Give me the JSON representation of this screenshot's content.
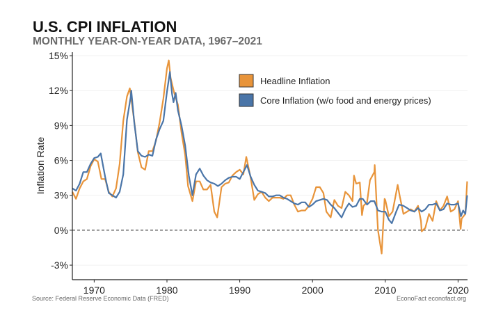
{
  "title": "U.S. CPI INFLATION",
  "subtitle": "MONTHLY YEAR-ON-YEAR DATA, 1967–2021",
  "source": "Source: Federal Reserve Economic Data (FRED)",
  "brand": "EconoFact  econofact.org",
  "chart_data": {
    "type": "line",
    "ylabel": "Inflation Rate",
    "xlabel": "",
    "xlim": [
      1967,
      2021.3
    ],
    "ylim": [
      -4.25,
      15.3
    ],
    "yticks": [
      -3,
      0,
      3,
      6,
      9,
      12,
      15
    ],
    "ytick_labels": [
      "-3%",
      "0%",
      "3%",
      "6%",
      "9%",
      "12%",
      "15%"
    ],
    "xticks": [
      1970,
      1980,
      1990,
      2000,
      2010,
      2020
    ],
    "xtick_labels": [
      "1970",
      "1980",
      "1990",
      "2000",
      "2010",
      "2020"
    ],
    "grid": "horizontal, faint",
    "zero_line": "dashed",
    "legend_position": "top-right",
    "series": [
      {
        "name": "Headline Inflation",
        "color": "#E8943A",
        "x": [
          1967.0,
          1967.5,
          1968.0,
          1968.5,
          1969.0,
          1969.5,
          1970.0,
          1970.5,
          1971.0,
          1971.5,
          1972.0,
          1972.5,
          1973.0,
          1973.5,
          1974.0,
          1974.5,
          1974.9,
          1975.5,
          1976.0,
          1976.5,
          1977.0,
          1977.5,
          1978.0,
          1978.5,
          1979.0,
          1979.5,
          1980.0,
          1980.25,
          1980.5,
          1981.0,
          1981.5,
          1982.0,
          1982.5,
          1982.9,
          1983.5,
          1984.0,
          1984.5,
          1985.0,
          1985.5,
          1986.0,
          1986.5,
          1986.9,
          1987.5,
          1988.0,
          1988.5,
          1989.0,
          1989.5,
          1990.0,
          1990.5,
          1990.9,
          1991.5,
          1992.0,
          1992.5,
          1993.0,
          1993.5,
          1994.0,
          1994.5,
          1995.0,
          1995.5,
          1996.0,
          1996.5,
          1997.0,
          1997.5,
          1998.0,
          1998.5,
          1999.0,
          1999.5,
          2000.0,
          2000.5,
          2001.0,
          2001.5,
          2001.9,
          2002.5,
          2003.0,
          2003.5,
          2004.0,
          2004.5,
          2005.0,
          2005.5,
          2005.7,
          2006.0,
          2006.5,
          2006.8,
          2007.0,
          2007.5,
          2007.9,
          2008.5,
          2008.55,
          2008.9,
          2009.0,
          2009.5,
          2009.9,
          2010.0,
          2010.5,
          2011.0,
          2011.7,
          2012.0,
          2012.5,
          2013.0,
          2013.5,
          2014.0,
          2014.5,
          2014.9,
          2015.0,
          2015.5,
          2016.0,
          2016.5,
          2017.0,
          2017.5,
          2018.0,
          2018.5,
          2019.0,
          2019.5,
          2020.0,
          2020.35,
          2020.5,
          2021.0,
          2021.25
        ],
        "y": [
          3.3,
          2.7,
          3.6,
          4.2,
          4.4,
          5.5,
          6.1,
          5.9,
          4.4,
          4.4,
          3.3,
          2.9,
          3.6,
          5.7,
          9.4,
          11.5,
          12.2,
          9.4,
          6.7,
          5.4,
          5.2,
          6.8,
          6.8,
          7.7,
          9.3,
          11.3,
          13.9,
          14.6,
          13.1,
          11.8,
          10.8,
          8.4,
          6.5,
          3.8,
          2.5,
          4.2,
          4.2,
          3.5,
          3.5,
          3.9,
          1.6,
          1.1,
          3.7,
          4.0,
          4.1,
          4.7,
          5.0,
          5.2,
          4.8,
          6.3,
          4.5,
          2.6,
          3.1,
          3.3,
          2.8,
          2.5,
          2.8,
          2.8,
          2.8,
          2.7,
          3.0,
          3.0,
          2.2,
          1.6,
          1.7,
          1.7,
          2.1,
          2.7,
          3.7,
          3.7,
          3.2,
          1.6,
          1.1,
          2.6,
          2.1,
          1.9,
          3.3,
          3.0,
          2.5,
          4.7,
          4.0,
          4.1,
          1.3,
          2.1,
          2.4,
          4.3,
          5.0,
          5.6,
          1.1,
          0.0,
          -2.0,
          2.7,
          2.6,
          1.2,
          1.6,
          3.9,
          2.9,
          1.4,
          1.6,
          1.8,
          1.6,
          2.1,
          0.8,
          -0.1,
          0.2,
          1.4,
          0.8,
          2.5,
          1.7,
          2.1,
          2.9,
          1.6,
          1.8,
          2.5,
          0.1,
          1.0,
          1.4,
          4.2
        ]
      },
      {
        "name": "Core Inflation (w/o food and energy prices)",
        "color": "#4A75A8",
        "x": [
          1967.0,
          1967.5,
          1968.0,
          1968.5,
          1969.0,
          1969.5,
          1970.0,
          1970.5,
          1970.9,
          1971.5,
          1972.0,
          1972.5,
          1973.0,
          1973.5,
          1974.0,
          1974.5,
          1975.0,
          1975.1,
          1975.5,
          1976.0,
          1976.5,
          1977.0,
          1977.5,
          1978.0,
          1978.5,
          1979.0,
          1979.5,
          1980.0,
          1980.4,
          1980.7,
          1980.9,
          1981.2,
          1981.5,
          1982.0,
          1982.5,
          1983.0,
          1983.5,
          1984.0,
          1984.5,
          1985.0,
          1985.5,
          1986.0,
          1986.5,
          1987.0,
          1987.5,
          1988.0,
          1988.5,
          1989.0,
          1989.5,
          1990.0,
          1990.5,
          1991.0,
          1991.5,
          1992.0,
          1992.5,
          1993.0,
          1993.5,
          1994.0,
          1994.5,
          1995.0,
          1995.5,
          1996.0,
          1996.5,
          1997.0,
          1997.5,
          1998.0,
          1998.5,
          1999.0,
          1999.5,
          2000.0,
          2000.5,
          2001.0,
          2001.5,
          2002.0,
          2002.5,
          2003.0,
          2003.5,
          2004.0,
          2004.5,
          2005.0,
          2005.5,
          2006.0,
          2006.5,
          2006.9,
          2007.5,
          2008.0,
          2008.5,
          2009.0,
          2009.5,
          2010.0,
          2010.5,
          2010.9,
          2011.5,
          2011.9,
          2012.5,
          2013.0,
          2013.5,
          2014.0,
          2014.5,
          2015.0,
          2015.5,
          2016.0,
          2016.5,
          2017.0,
          2017.5,
          2018.0,
          2018.5,
          2019.0,
          2019.5,
          2020.0,
          2020.4,
          2020.7,
          2021.0,
          2021.25
        ],
        "y": [
          3.6,
          3.4,
          4.0,
          5.0,
          5.0,
          5.7,
          6.2,
          6.3,
          6.6,
          4.6,
          3.2,
          3.0,
          2.8,
          3.3,
          4.8,
          9.5,
          11.4,
          12.0,
          9.3,
          6.8,
          6.4,
          6.3,
          6.5,
          6.4,
          7.8,
          8.7,
          9.4,
          11.9,
          13.6,
          11.7,
          11.0,
          11.8,
          10.3,
          9.0,
          7.3,
          4.7,
          3.0,
          4.8,
          5.3,
          4.7,
          4.3,
          4.1,
          4.0,
          3.8,
          4.0,
          4.3,
          4.5,
          4.6,
          4.6,
          4.4,
          5.0,
          5.6,
          4.6,
          3.9,
          3.4,
          3.3,
          3.2,
          2.9,
          2.9,
          3.0,
          3.0,
          2.8,
          2.7,
          2.5,
          2.3,
          2.2,
          2.4,
          2.4,
          2.0,
          2.2,
          2.5,
          2.6,
          2.7,
          2.6,
          2.2,
          1.9,
          1.5,
          1.1,
          1.8,
          2.3,
          2.0,
          2.1,
          2.7,
          2.7,
          2.2,
          2.5,
          2.5,
          1.7,
          1.6,
          1.6,
          0.9,
          0.6,
          1.6,
          2.2,
          2.1,
          1.9,
          1.7,
          1.6,
          1.9,
          1.6,
          1.8,
          2.2,
          2.2,
          2.3,
          1.7,
          1.8,
          2.3,
          2.2,
          2.2,
          2.3,
          1.2,
          1.7,
          1.4,
          3.0
        ]
      }
    ]
  }
}
